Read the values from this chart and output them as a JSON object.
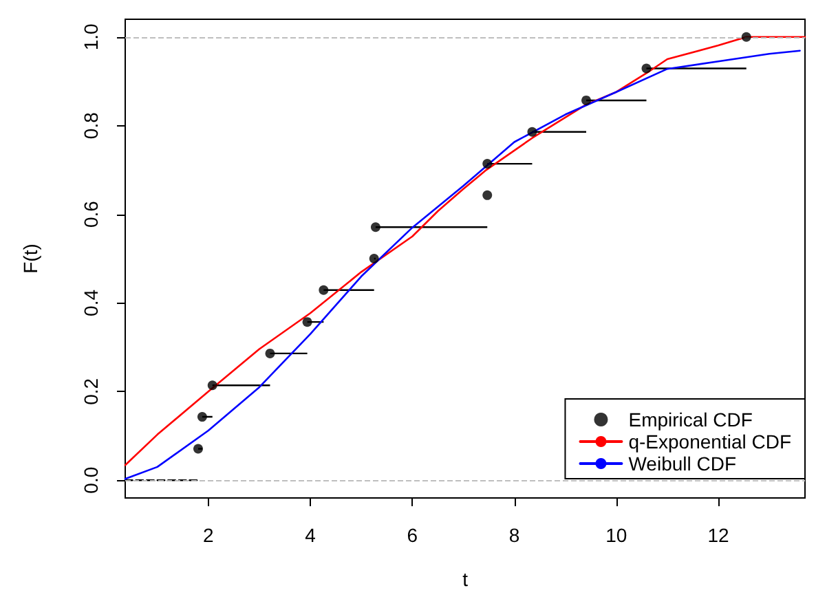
{
  "chart_data": {
    "type": "line",
    "xlabel": "t",
    "ylabel": "F(t)",
    "xlim": [
      0.37,
      13.7
    ],
    "ylim": [
      -0.04,
      1.04
    ],
    "xticks": [
      2,
      4,
      6,
      8,
      10,
      12
    ],
    "yticks": [
      {
        "value": 0,
        "label": "0.0"
      },
      {
        "value": 0.2,
        "label": "0.2"
      },
      {
        "value": 0.4,
        "label": "0.4"
      },
      {
        "value": 0.6,
        "label": "0.6"
      },
      {
        "value": 0.8,
        "label": "0.8"
      },
      {
        "value": 1,
        "label": "1.0"
      }
    ],
    "grid": false,
    "legend": "bottom right",
    "line_style": "solid",
    "ref_lines": [
      {
        "axis": "y",
        "value": 0,
        "color": "#bebebe",
        "line_style": "dashed"
      },
      {
        "axis": "y",
        "value": 1,
        "color": "#bebebe",
        "line_style": "dashed"
      }
    ],
    "series": [
      {
        "color": "#000000",
        "line_style": "dashed",
        "x": [
          0.37,
          1.8
        ],
        "values": [
          0,
          0
        ]
      },
      {
        "name": "Empirical CDF",
        "type": "scatter",
        "color": "#000000",
        "marker": "circle",
        "x": [
          1.8,
          1.88,
          2.08,
          3.21,
          3.94,
          4.26,
          5.25,
          5.28,
          7.47,
          7.47,
          8.35,
          9.41,
          10.59,
          12.55
        ],
        "values": [
          0.071,
          0.143,
          0.214,
          0.286,
          0.357,
          0.429,
          0.5,
          0.571,
          0.643,
          0.714,
          0.786,
          0.857,
          0.929,
          1.0
        ],
        "xerrors": [
          [
            1.8,
            1.88
          ],
          [
            1.88,
            2.08
          ],
          [
            2.08,
            3.21
          ],
          [
            3.21,
            3.94
          ],
          [
            3.94,
            4.26
          ],
          [
            4.26,
            5.25
          ],
          [
            5.25,
            5.28
          ],
          [
            5.28,
            7.47
          ],
          [
            7.47,
            7.47
          ],
          [
            7.47,
            8.35
          ],
          [
            8.35,
            9.41
          ],
          [
            9.41,
            10.59
          ],
          [
            10.59,
            12.55
          ],
          null
        ]
      },
      {
        "name": "q-Exponential CDF",
        "color": "#ff0000",
        "marker": "none",
        "x": [
          0.37,
          1,
          2,
          3,
          4,
          5,
          6,
          6.5,
          7,
          7.45,
          8.35,
          9.4,
          10,
          10.6,
          11,
          12,
          12.55,
          13.7
        ],
        "values": [
          0.034,
          0.103,
          0.2,
          0.296,
          0.377,
          0.47,
          0.55,
          0.607,
          0.657,
          0.7,
          0.772,
          0.847,
          0.876,
          0.919,
          0.95,
          0.981,
          1.0,
          1.0
        ]
      },
      {
        "name": "Weibull CDF",
        "color": "#0000ff",
        "marker": "none",
        "x": [
          0.37,
          1,
          2,
          3,
          4,
          5,
          6,
          7,
          8,
          9,
          10,
          11,
          12,
          13,
          13.6
        ],
        "values": [
          0.003,
          0.03,
          0.112,
          0.21,
          0.33,
          0.46,
          0.57,
          0.664,
          0.763,
          0.825,
          0.876,
          0.928,
          0.945,
          0.962,
          0.969
        ]
      }
    ]
  }
}
